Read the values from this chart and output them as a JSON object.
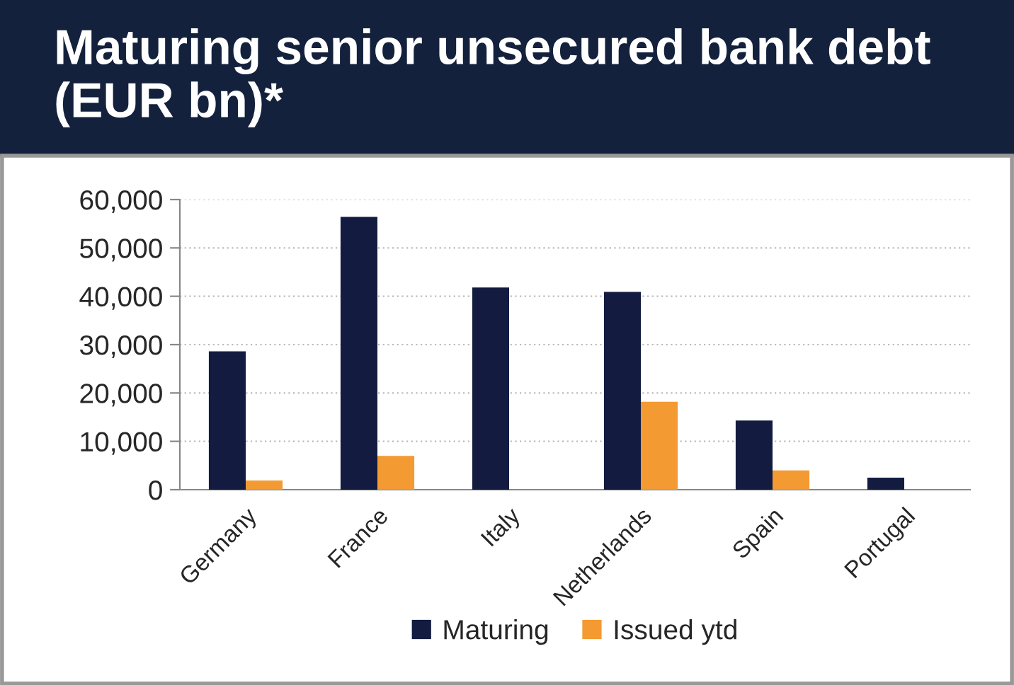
{
  "chart_data": {
    "type": "bar",
    "title": "Maturing senior unsecured bank debt (EUR bn)*",
    "categories": [
      "Germany",
      "France",
      "Italy",
      "Netherlands",
      "Spain",
      "Portugal"
    ],
    "series": [
      {
        "name": "Maturing",
        "color": "#131c40",
        "values": [
          28600,
          56400,
          41800,
          40900,
          14300,
          2500
        ]
      },
      {
        "name": "Issued ytd",
        "color": "#f39a32",
        "values": [
          1900,
          7000,
          null,
          18200,
          4000,
          null
        ]
      }
    ],
    "ylim": [
      0,
      60000
    ],
    "yticks": [
      {
        "value": 0,
        "label": "0"
      },
      {
        "value": 10000,
        "label": "10,000"
      },
      {
        "value": 20000,
        "label": "20,000"
      },
      {
        "value": 30000,
        "label": "30,000"
      },
      {
        "value": 40000,
        "label": "40,000"
      },
      {
        "value": 50000,
        "label": "50,000"
      },
      {
        "value": 60000,
        "label": "60,000"
      }
    ],
    "grid": "y",
    "legend": "bottom"
  }
}
